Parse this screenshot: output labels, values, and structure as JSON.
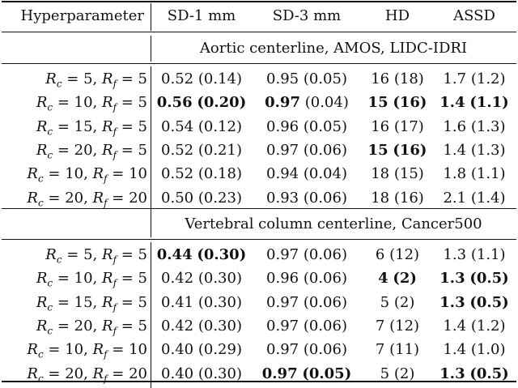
{
  "header": [
    "Hyperparameter",
    "SD-1 mm",
    "SD-3 mm",
    "HD",
    "ASSD"
  ],
  "sections": [
    {
      "title": "Aortic centerline, AMOS, LIDC-IDRI",
      "rows": [
        {
          "param": "R_c = 5, R_f = 5",
          "cells": [
            {
              "v": "0.52",
              "s": "(0.14)",
              "bv": false,
              "bs": false
            },
            {
              "v": "0.95",
              "s": "(0.05)",
              "bv": false,
              "bs": false
            },
            {
              "v": "16",
              "s": "(18)",
              "bv": false,
              "bs": false
            },
            {
              "v": "1.7",
              "s": "(1.2)",
              "bv": false,
              "bs": false
            }
          ]
        },
        {
          "param": "R_c = 10, R_f = 5",
          "cells": [
            {
              "v": "0.56",
              "s": "(0.20)",
              "bv": true,
              "bs": true
            },
            {
              "v": "0.97",
              "s": "(0.04)",
              "bv": true,
              "bs": false
            },
            {
              "v": "15",
              "s": "(16)",
              "bv": true,
              "bs": true
            },
            {
              "v": "1.4",
              "s": "(1.1)",
              "bv": true,
              "bs": true
            }
          ]
        },
        {
          "param": "R_c = 15, R_f = 5",
          "cells": [
            {
              "v": "0.54",
              "s": "(0.12)",
              "bv": false,
              "bs": false
            },
            {
              "v": "0.96",
              "s": "(0.05)",
              "bv": false,
              "bs": false
            },
            {
              "v": "16",
              "s": "(17)",
              "bv": false,
              "bs": false
            },
            {
              "v": "1.6",
              "s": "(1.3)",
              "bv": false,
              "bs": false
            }
          ]
        },
        {
          "param": "R_c = 20, R_f = 5",
          "cells": [
            {
              "v": "0.52",
              "s": "(0.21)",
              "bv": false,
              "bs": false
            },
            {
              "v": "0.97",
              "s": "(0.06)",
              "bv": false,
              "bs": false
            },
            {
              "v": "15",
              "s": "(16)",
              "bv": true,
              "bs": true
            },
            {
              "v": "1.4",
              "s": "(1.3)",
              "bv": false,
              "bs": false
            }
          ]
        },
        {
          "param": "R_c = 10, R_f = 10",
          "cells": [
            {
              "v": "0.52",
              "s": "(0.18)",
              "bv": false,
              "bs": false
            },
            {
              "v": "0.94",
              "s": "(0.04)",
              "bv": false,
              "bs": false
            },
            {
              "v": "18",
              "s": "(15)",
              "bv": false,
              "bs": false
            },
            {
              "v": "1.8",
              "s": "(1.1)",
              "bv": false,
              "bs": false
            }
          ]
        },
        {
          "param": "R_c = 20, R_f = 20",
          "cells": [
            {
              "v": "0.50",
              "s": "(0.23)",
              "bv": false,
              "bs": false
            },
            {
              "v": "0.93",
              "s": "(0.06)",
              "bv": false,
              "bs": false
            },
            {
              "v": "18",
              "s": "(16)",
              "bv": false,
              "bs": false
            },
            {
              "v": "2.1",
              "s": "(1.4)",
              "bv": false,
              "bs": false
            }
          ]
        }
      ]
    },
    {
      "title": "Vertebral column centerline, Cancer500",
      "rows": [
        {
          "param": "R_c = 5, R_f = 5",
          "cells": [
            {
              "v": "0.44",
              "s": "(0.30)",
              "bv": true,
              "bs": true
            },
            {
              "v": "0.97",
              "s": "(0.06)",
              "bv": false,
              "bs": false
            },
            {
              "v": "6",
              "s": "(12)",
              "bv": false,
              "bs": false
            },
            {
              "v": "1.3",
              "s": "(1.1)",
              "bv": false,
              "bs": false
            }
          ]
        },
        {
          "param": "R_c = 10, R_f = 5",
          "cells": [
            {
              "v": "0.42",
              "s": "(0.30)",
              "bv": false,
              "bs": false
            },
            {
              "v": "0.96",
              "s": "(0.06)",
              "bv": false,
              "bs": false
            },
            {
              "v": "4",
              "s": "(2)",
              "bv": true,
              "bs": true
            },
            {
              "v": "1.3",
              "s": "(0.5)",
              "bv": true,
              "bs": true
            }
          ]
        },
        {
          "param": "R_c = 15, R_f = 5",
          "cells": [
            {
              "v": "0.41",
              "s": "(0.30)",
              "bv": false,
              "bs": false
            },
            {
              "v": "0.97",
              "s": "(0.06)",
              "bv": false,
              "bs": false
            },
            {
              "v": "5",
              "s": "(2)",
              "bv": false,
              "bs": false
            },
            {
              "v": "1.3",
              "s": "(0.5)",
              "bv": true,
              "bs": true
            }
          ]
        },
        {
          "param": "R_c = 20, R_f = 5",
          "cells": [
            {
              "v": "0.42",
              "s": "(0.30)",
              "bv": false,
              "bs": false
            },
            {
              "v": "0.97",
              "s": "(0.06)",
              "bv": false,
              "bs": false
            },
            {
              "v": "7",
              "s": "(12)",
              "bv": false,
              "bs": false
            },
            {
              "v": "1.4",
              "s": "(1.2)",
              "bv": false,
              "bs": false
            }
          ]
        },
        {
          "param": "R_c = 10, R_f = 10",
          "cells": [
            {
              "v": "0.40",
              "s": "(0.29)",
              "bv": false,
              "bs": false
            },
            {
              "v": "0.97",
              "s": "(0.06)",
              "bv": false,
              "bs": false
            },
            {
              "v": "7",
              "s": "(11)",
              "bv": false,
              "bs": false
            },
            {
              "v": "1.4",
              "s": "(1.0)",
              "bv": false,
              "bs": false
            }
          ]
        },
        {
          "param": "R_c = 20, R_f = 20",
          "cells": [
            {
              "v": "0.40",
              "s": "(0.30)",
              "bv": false,
              "bs": false
            },
            {
              "v": "0.97",
              "s": "(0.05)",
              "bv": true,
              "bs": true
            },
            {
              "v": "5",
              "s": "(2)",
              "bv": false,
              "bs": false
            },
            {
              "v": "1.3",
              "s": "(0.5)",
              "bv": true,
              "bs": true
            }
          ]
        }
      ]
    }
  ]
}
